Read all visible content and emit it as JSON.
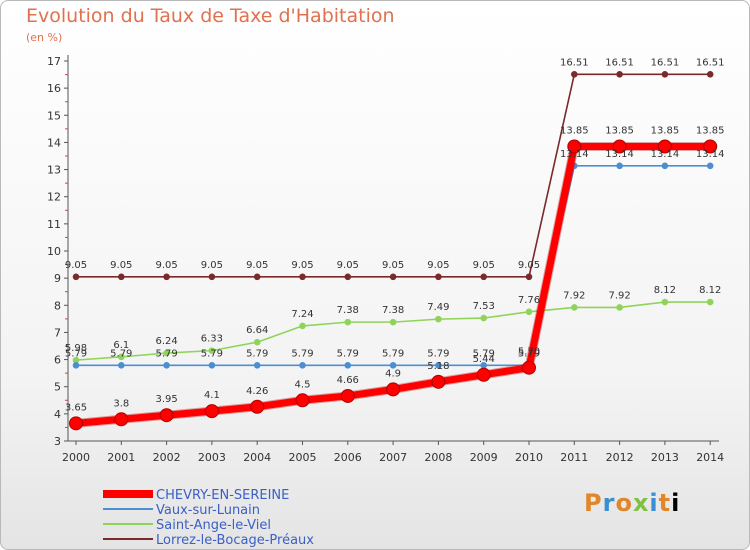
{
  "chart_data": {
    "type": "line",
    "title": "Evolution du Taux de Taxe d'Habitation",
    "unit_label": "(en %)",
    "x": [
      "2000",
      "2001",
      "2002",
      "2003",
      "2004",
      "2005",
      "2006",
      "2007",
      "2008",
      "2009",
      "2010",
      "2011",
      "2012",
      "2013",
      "2014"
    ],
    "ylim": [
      3,
      17
    ],
    "yticks": [
      "3",
      "4",
      "5",
      "6",
      "7",
      "8",
      "9",
      "10",
      "11",
      "12",
      "13",
      "14",
      "15",
      "16",
      "17"
    ],
    "grid": false,
    "legend_position": "bottom-left",
    "series": [
      {
        "name": "CHEVRY-EN-SEREINE",
        "color": "#ff0000",
        "values": [
          3.65,
          3.8,
          3.95,
          4.1,
          4.26,
          4.5,
          4.66,
          4.9,
          5.18,
          5.44,
          5.7,
          13.85,
          13.85,
          13.85,
          13.85
        ],
        "labels": [
          "3.65",
          "3.8",
          "3.95",
          "4.1",
          "4.26",
          "4.5",
          "4.66",
          "4.9",
          "5.18",
          "5.44",
          "5.70",
          "13.85",
          "13.85",
          "13.85",
          "13.85"
        ]
      },
      {
        "name": "Vaux-sur-Lunain",
        "color": "#4d8ed1",
        "values": [
          5.79,
          5.79,
          5.79,
          5.79,
          5.79,
          5.79,
          5.79,
          5.79,
          5.79,
          5.79,
          5.79,
          13.14,
          13.14,
          13.14,
          13.14
        ],
        "labels": [
          "5.79",
          "5.79",
          "5.79",
          "5.79",
          "5.79",
          "5.79",
          "5.79",
          "5.79",
          "5.79",
          "5.79",
          "5.79",
          "13.14",
          "13.14",
          "13.14",
          "13.14"
        ]
      },
      {
        "name": "Saint-Ange-le-Viel",
        "color": "#8fd45a",
        "values": [
          5.98,
          6.1,
          6.24,
          6.33,
          6.64,
          7.24,
          7.38,
          7.38,
          7.49,
          7.53,
          7.76,
          7.92,
          7.92,
          8.12,
          8.12
        ],
        "labels": [
          "5.98",
          "6.1",
          "6.24",
          "6.33",
          "6.64",
          "7.24",
          "7.38",
          "7.38",
          "7.49",
          "7.53",
          "7.76",
          "7.92",
          "7.92",
          "8.12",
          "8.12"
        ]
      },
      {
        "name": "Lorrez-le-Bocage-Préaux",
        "color": "#7a2a2a",
        "values": [
          9.05,
          9.05,
          9.05,
          9.05,
          9.05,
          9.05,
          9.05,
          9.05,
          9.05,
          9.05,
          9.05,
          16.51,
          16.51,
          16.51,
          16.51
        ],
        "labels": [
          "9.05",
          "9.05",
          "9.05",
          "9.05",
          "9.05",
          "9.05",
          "9.05",
          "9.05",
          "9.05",
          "9.05",
          "9.05",
          "16.51",
          "16.51",
          "16.51",
          "16.51"
        ]
      }
    ]
  },
  "logo": {
    "letters": [
      "P",
      "r",
      "o",
      "x",
      "i",
      "t",
      "i"
    ]
  }
}
